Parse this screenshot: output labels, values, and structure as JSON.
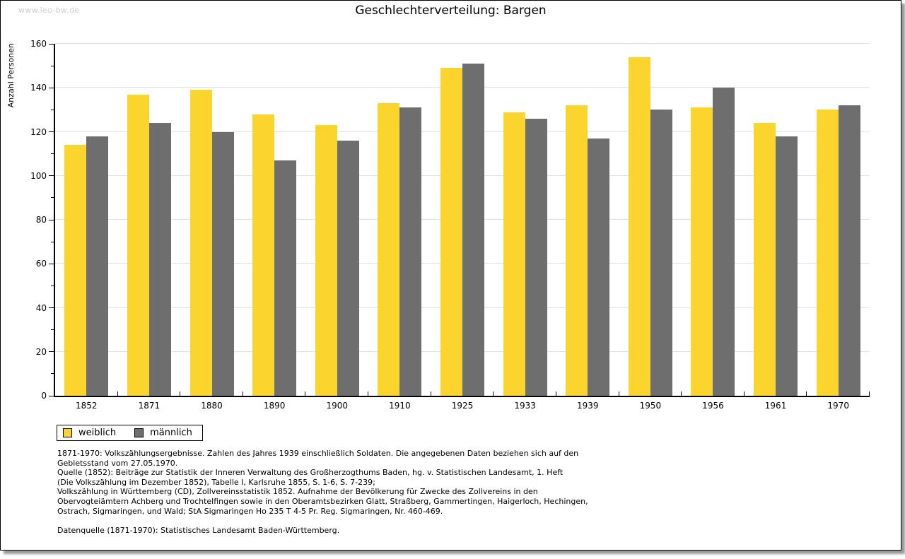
{
  "page": {
    "watermark": "www.leo-bw.de",
    "title": "Geschlechterverteilung: Bargen"
  },
  "chart_data": {
    "type": "bar",
    "title": "Geschlechterverteilung: Bargen",
    "xlabel": "",
    "ylabel": "Anzahl Personen",
    "ylim": [
      0,
      160
    ],
    "ytick_major_step": 20,
    "ytick_minor_step": 10,
    "grid": true,
    "legend_position": "bottom-left",
    "categories": [
      "1852",
      "1871",
      "1880",
      "1890",
      "1900",
      "1910",
      "1925",
      "1933",
      "1939",
      "1950",
      "1956",
      "1961",
      "1970"
    ],
    "series": [
      {
        "name": "weiblich",
        "color": "#fbd42e",
        "values": [
          114,
          137,
          139,
          128,
          123,
          133,
          149,
          129,
          132,
          154,
          131,
          124,
          130
        ]
      },
      {
        "name": "männlich",
        "color": "#6e6e6e",
        "values": [
          118,
          124,
          120,
          107,
          116,
          131,
          151,
          126,
          117,
          130,
          140,
          118,
          132
        ]
      }
    ]
  },
  "colors": {
    "gridline": "#e2e2e2",
    "axis": "#000000",
    "watermark": "#cdcdcd",
    "weiblich": "#fbd42e",
    "maennlich": "#6e6e6e"
  },
  "footer": {
    "lines": [
      "1871-1970: Volkszählungsergebnisse. Zahlen des Jahres 1939 einschließlich Soldaten. Die angegebenen Daten beziehen sich auf den",
      "Gebietsstand vom 27.05.1970.",
      "Quelle (1852): Beiträge zur Statistik der Inneren Verwaltung des Großherzogthums Baden, hg. v. Statistischen Landesamt, 1. Heft",
      "(Die Volkszählung im Dezember 1852), Tabelle I, Karlsruhe 1855, S. 1-6, S. 7-239;",
      "Volkszählung in Württemberg (CD), Zollvereinsstatistik 1852. Aufnahme der Bevölkerung für Zwecke des Zollvereins in den",
      "Obervogteiämtern Achberg und Trochtelfingen sowie in den Oberamtsbezirken Glatt, Straßberg, Gammertingen, Haigerloch, Hechingen,",
      "Ostrach, Sigmaringen, und Wald; StA Sigmaringen Ho 235 T 4-5 Pr. Reg. Sigmaringen, Nr. 460-469."
    ],
    "datasource": "Datenquelle (1871-1970): Statistisches Landesamt Baden-Württemberg."
  }
}
